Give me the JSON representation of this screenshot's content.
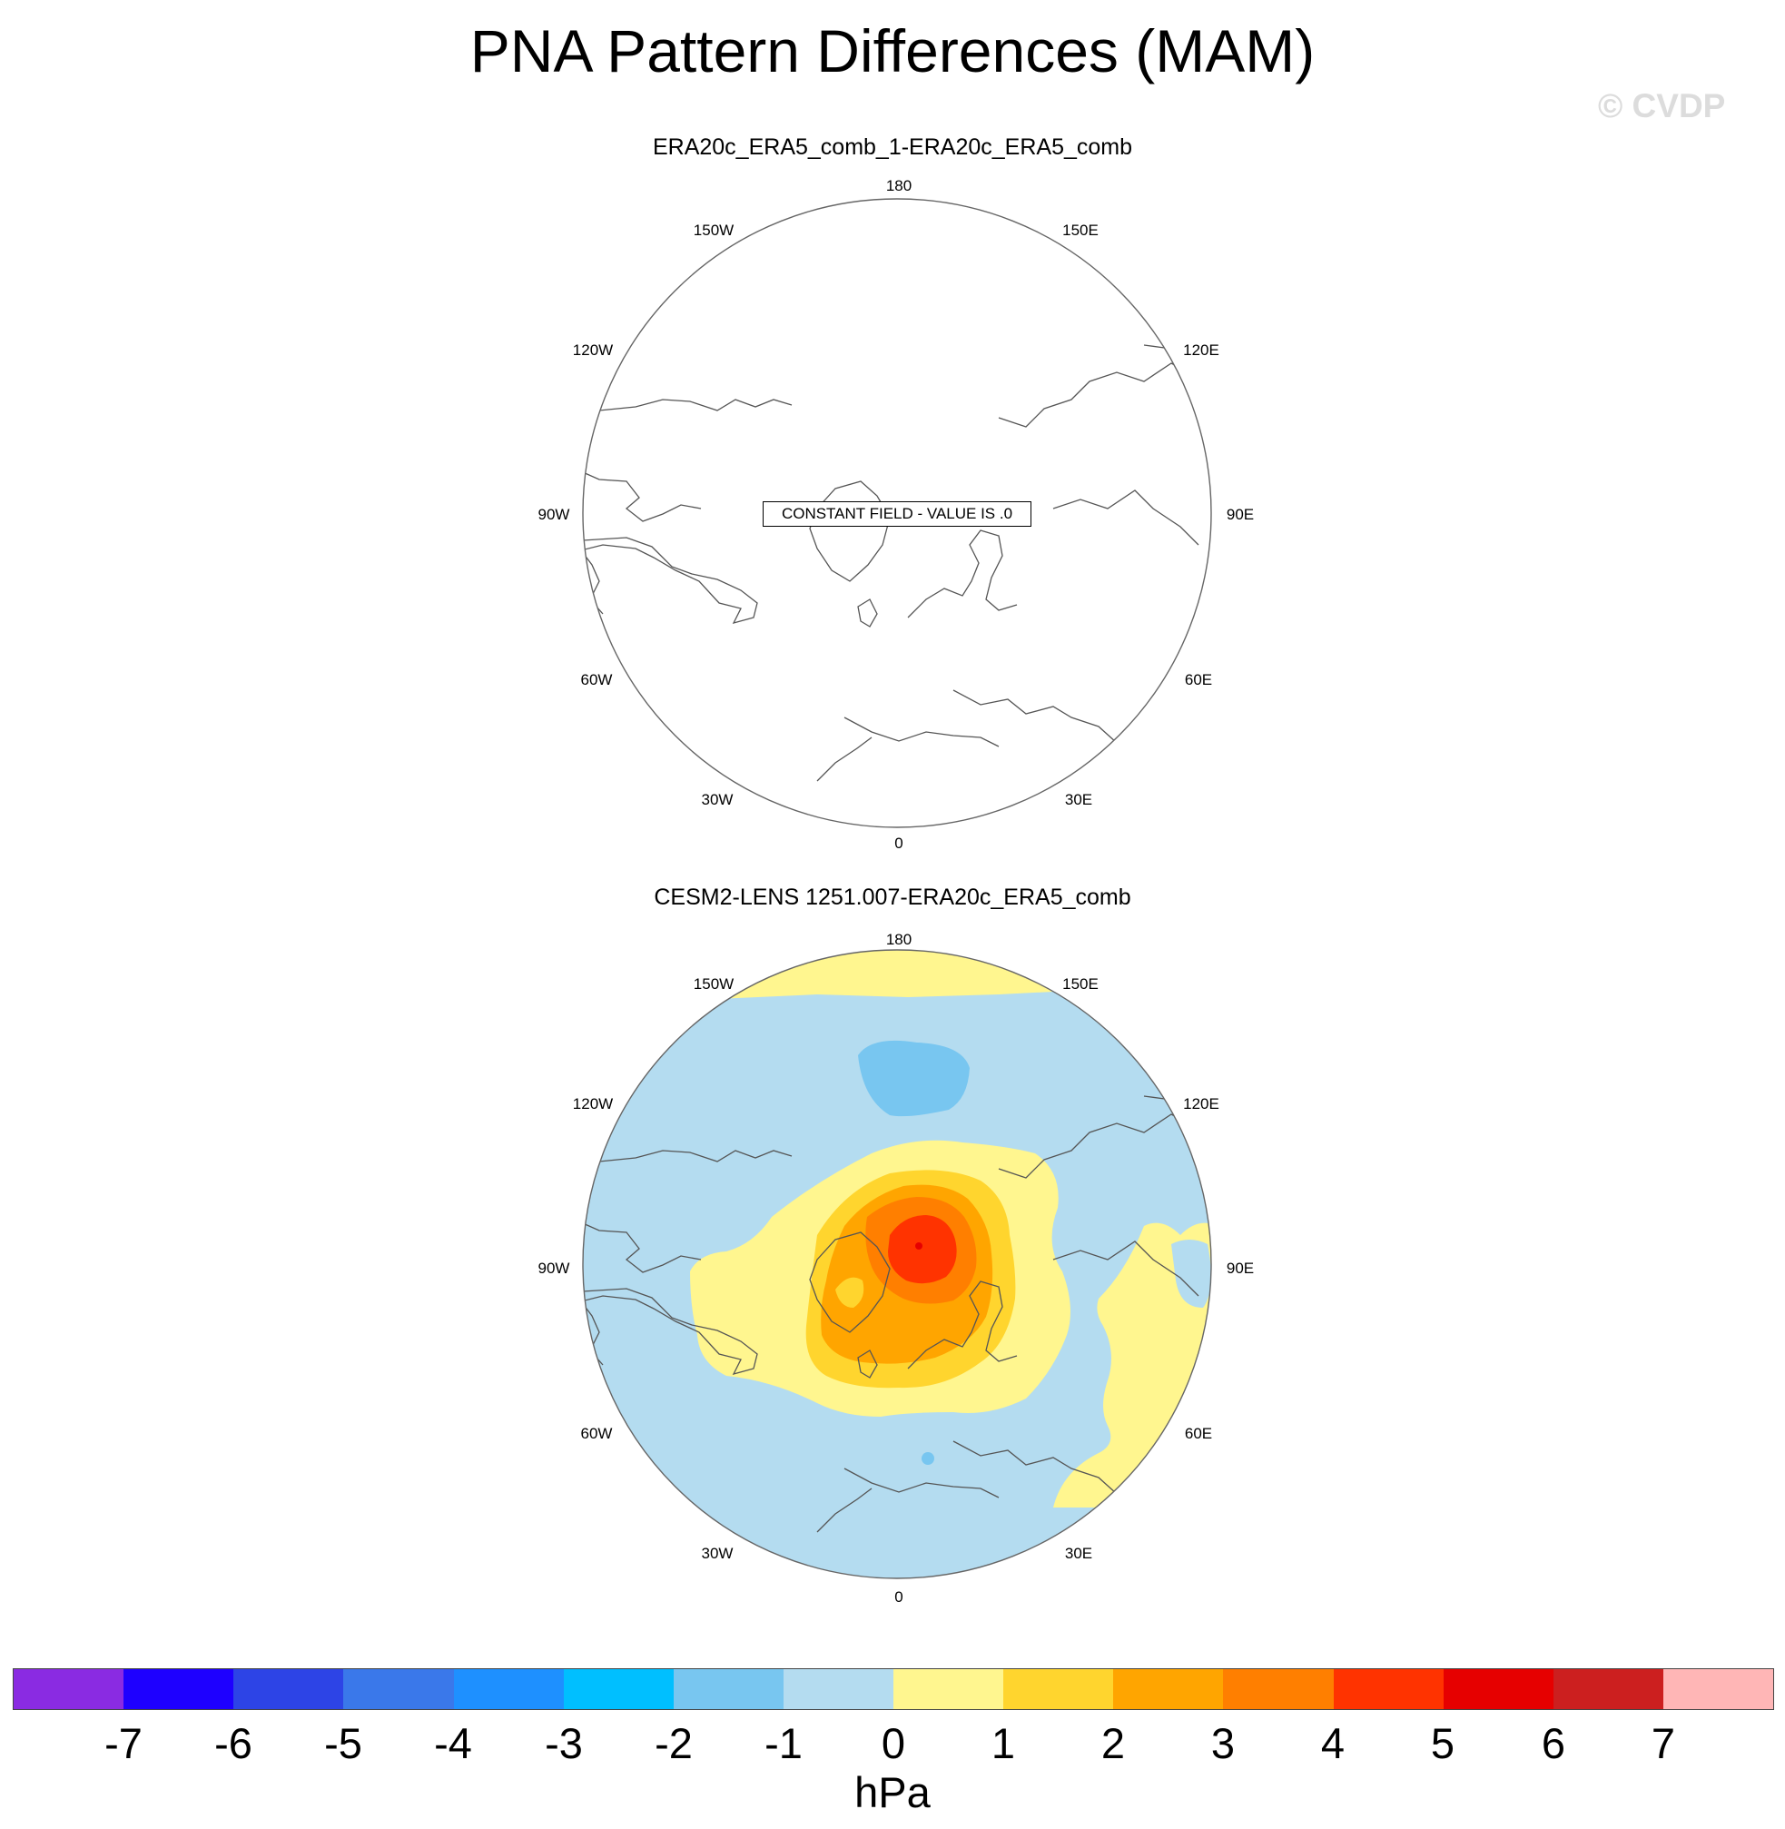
{
  "title": "PNA Pattern Differences (MAM)",
  "watermark": "© CVDP",
  "panels": [
    {
      "title": "ERA20c_ERA5_comb_1-ERA20c_ERA5_comb",
      "message": "CONSTANT FIELD - VALUE IS .0"
    },
    {
      "title": "CESM2-LENS 1251.007-ERA20c_ERA5_comb"
    }
  ],
  "longitude_labels": [
    "180",
    "150E",
    "120E",
    "90E",
    "60E",
    "30E",
    "0",
    "30W",
    "60W",
    "90W",
    "120W",
    "150W"
  ],
  "colorbar": {
    "units": "hPa",
    "ticks": [
      "-7",
      "-6",
      "-5",
      "-4",
      "-3",
      "-2",
      "-1",
      "0",
      "1",
      "2",
      "3",
      "4",
      "5",
      "6",
      "7"
    ],
    "colors": [
      "#8a2be2",
      "#1e00ff",
      "#2d44e6",
      "#3a78ea",
      "#1e90ff",
      "#00bfff",
      "#78c6f0",
      "#b4dcf0",
      "#fff68f",
      "#ffd52e",
      "#ffa500",
      "#ff7f00",
      "#ff3300",
      "#e60000",
      "#cc1f1f",
      "#ffb6b6"
    ]
  }
}
